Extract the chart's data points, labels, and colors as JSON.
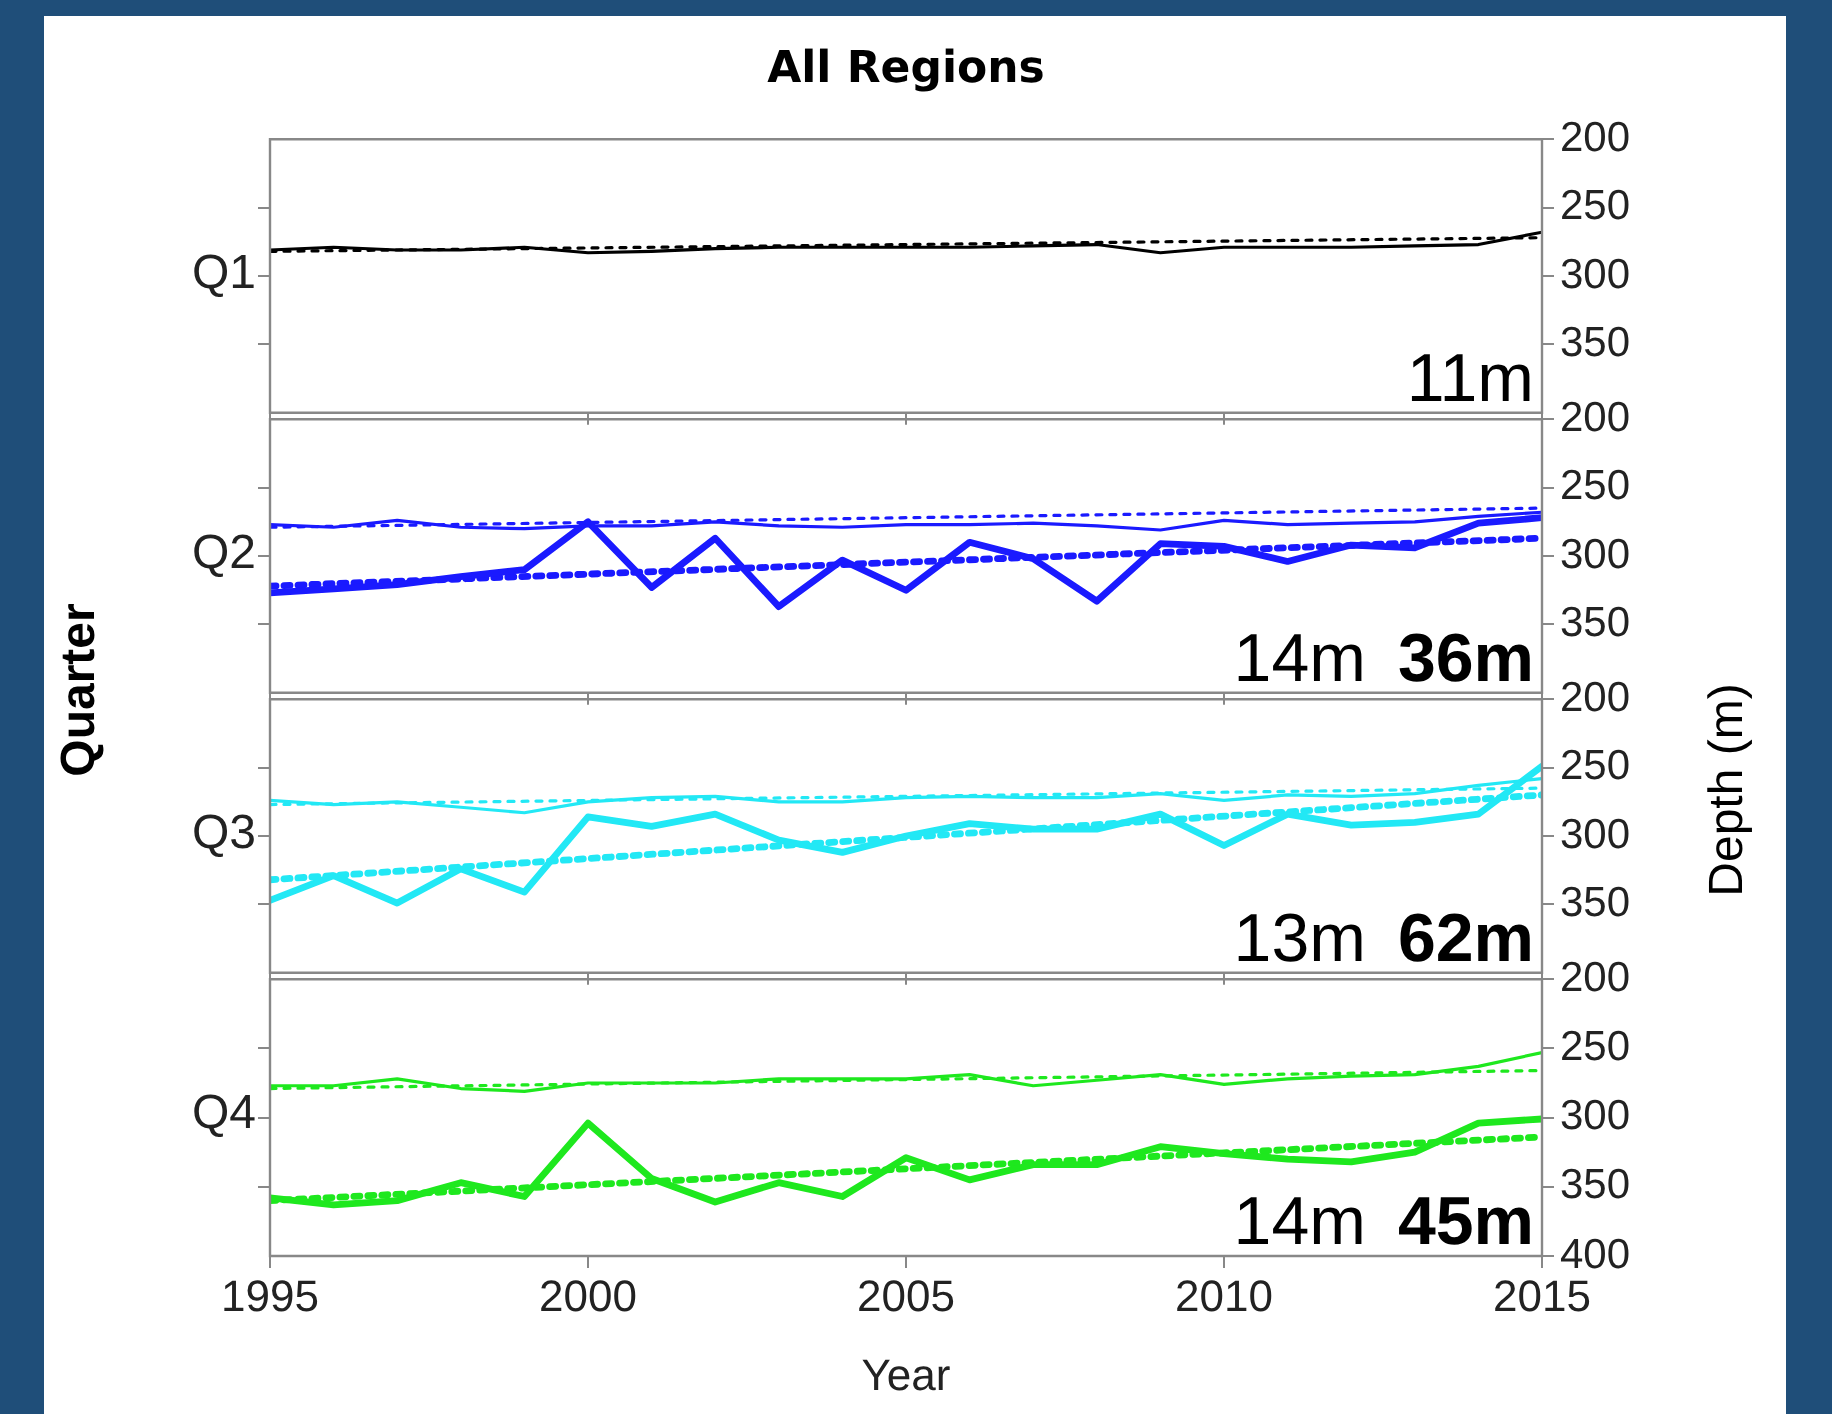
{
  "chart_data": [
    {
      "type": "line",
      "title": "All Regions",
      "x": [
        1995,
        1996,
        1997,
        1998,
        1999,
        2000,
        2001,
        2002,
        2003,
        2004,
        2005,
        2006,
        2007,
        2008,
        2009,
        2010,
        2011,
        2012,
        2013,
        2014,
        2015
      ],
      "xlim": [
        1995,
        2015
      ],
      "xticks": [
        1995,
        2000,
        2005,
        2010,
        2015
      ],
      "ylim": [
        400,
        200
      ],
      "yticks": [
        200,
        250,
        300,
        350
      ],
      "subtitle": "Q1",
      "tick_labels": "y",
      "grid": false,
      "legend": false,
      "marker": "none",
      "annotations": [
        "11m"
      ],
      "series": [
        {
          "color": "#000000",
          "line_style": "solid",
          "values": [
            281,
            279,
            281,
            281,
            279,
            283,
            282,
            280,
            279,
            279,
            279,
            279,
            278,
            277,
            283,
            279,
            279,
            279,
            278,
            277,
            268
          ]
        },
        {
          "color": "#000000",
          "line_style": "dotted",
          "values": [
            282,
            null,
            null,
            null,
            null,
            null,
            null,
            null,
            null,
            null,
            null,
            null,
            null,
            null,
            null,
            null,
            null,
            null,
            null,
            null,
            272
          ]
        }
      ]
    },
    {
      "type": "line",
      "x": [
        1995,
        1996,
        1997,
        1998,
        1999,
        2000,
        2001,
        2002,
        2003,
        2004,
        2005,
        2006,
        2007,
        2008,
        2009,
        2010,
        2011,
        2012,
        2013,
        2014,
        2015
      ],
      "xlim": [
        1995,
        2015
      ],
      "xticks": [
        1995,
        2000,
        2005,
        2010,
        2015
      ],
      "ylim": [
        400,
        200
      ],
      "yticks": [
        200,
        250,
        300,
        350
      ],
      "subtitle": "Q2",
      "y2label": "Quarter",
      "tick_labels": "y",
      "grid": false,
      "legend": false,
      "marker": "none",
      "annotations": [
        "14m",
        "36m"
      ],
      "series": [
        {
          "color": "#1a1aff",
          "line_style": "solid",
          "values": [
            277,
            279,
            274,
            279,
            280,
            278,
            278,
            275,
            278,
            279,
            277,
            277,
            276,
            278,
            281,
            274,
            277,
            276,
            275,
            271,
            268
          ]
        },
        {
          "color": "#1a1aff",
          "line_style": "dotted",
          "values": [
            279,
            null,
            null,
            null,
            null,
            null,
            null,
            null,
            null,
            null,
            null,
            null,
            null,
            null,
            null,
            null,
            null,
            null,
            null,
            null,
            265
          ]
        },
        {
          "color": "#1a1aff",
          "line_style": "solid",
          "values": [
            327,
            324,
            321,
            315,
            310,
            275,
            323,
            287,
            337,
            303,
            325,
            290,
            302,
            333,
            291,
            293,
            304,
            292,
            294,
            276,
            272
          ]
        },
        {
          "color": "#1a1aff",
          "line_style": "dotted",
          "values": [
            322,
            null,
            null,
            null,
            null,
            null,
            null,
            null,
            null,
            null,
            null,
            null,
            null,
            null,
            null,
            null,
            null,
            null,
            null,
            null,
            287
          ]
        }
      ]
    },
    {
      "type": "line",
      "x": [
        1995,
        1996,
        1997,
        1998,
        1999,
        2000,
        2001,
        2002,
        2003,
        2004,
        2005,
        2006,
        2007,
        2008,
        2009,
        2010,
        2011,
        2012,
        2013,
        2014,
        2015
      ],
      "xlim": [
        1995,
        2015
      ],
      "xticks": [
        1995,
        2000,
        2005,
        2010,
        2015
      ],
      "ylim": [
        400,
        200
      ],
      "yticks": [
        200,
        250,
        300,
        350
      ],
      "ylabel": "Depth (m)",
      "subtitle": "Q3",
      "tick_labels": "y",
      "grid": false,
      "legend": false,
      "marker": "none",
      "annotations": [
        "13m",
        "62m"
      ],
      "series": [
        {
          "color": "#22e8f5",
          "line_style": "solid",
          "values": [
            274,
            277,
            275,
            279,
            283,
            275,
            272,
            271,
            275,
            275,
            272,
            271,
            272,
            272,
            269,
            274,
            270,
            271,
            269,
            263,
            258
          ]
        },
        {
          "color": "#22e8f5",
          "line_style": "dotted",
          "values": [
            277,
            null,
            null,
            null,
            null,
            null,
            null,
            null,
            null,
            null,
            null,
            null,
            null,
            null,
            null,
            null,
            null,
            null,
            null,
            null,
            265
          ]
        },
        {
          "color": "#22e8f5",
          "line_style": "solid",
          "values": [
            347,
            329,
            349,
            324,
            341,
            286,
            293,
            284,
            303,
            312,
            300,
            291,
            295,
            295,
            284,
            307,
            284,
            292,
            290,
            284,
            249
          ]
        },
        {
          "color": "#22e8f5",
          "line_style": "dotted",
          "values": [
            332,
            null,
            null,
            null,
            null,
            null,
            null,
            null,
            null,
            null,
            null,
            null,
            null,
            null,
            null,
            null,
            null,
            null,
            null,
            null,
            270
          ]
        }
      ]
    },
    {
      "type": "line",
      "x": [
        1995,
        1996,
        1997,
        1998,
        1999,
        2000,
        2001,
        2002,
        2003,
        2004,
        2005,
        2006,
        2007,
        2008,
        2009,
        2010,
        2011,
        2012,
        2013,
        2014,
        2015
      ],
      "xlim": [
        1995,
        2015
      ],
      "xticks": [
        1995,
        2000,
        2005,
        2010,
        2015
      ],
      "xlabel": "Year",
      "ylim": [
        400,
        200
      ],
      "yticks": [
        200,
        250,
        300,
        350,
        400
      ],
      "subtitle": "Q4",
      "grid": false,
      "legend": false,
      "marker": "none",
      "annotations": [
        "14m",
        "45m"
      ],
      "series": [
        {
          "color": "#1ee81e",
          "line_style": "solid",
          "values": [
            277,
            277,
            272,
            279,
            281,
            275,
            275,
            275,
            272,
            272,
            272,
            269,
            277,
            273,
            269,
            276,
            272,
            270,
            269,
            263,
            253
          ]
        },
        {
          "color": "#1ee81e",
          "line_style": "dotted",
          "values": [
            279,
            null,
            null,
            null,
            null,
            null,
            null,
            null,
            null,
            null,
            null,
            null,
            null,
            null,
            null,
            null,
            null,
            null,
            null,
            null,
            266
          ]
        },
        {
          "color": "#1ee81e",
          "line_style": "solid",
          "values": [
            358,
            363,
            360,
            347,
            357,
            304,
            344,
            361,
            347,
            357,
            329,
            345,
            334,
            334,
            321,
            326,
            330,
            332,
            325,
            304,
            301
          ]
        },
        {
          "color": "#1ee81e",
          "line_style": "dotted",
          "values": [
            360,
            null,
            null,
            null,
            null,
            null,
            null,
            null,
            null,
            null,
            null,
            null,
            null,
            null,
            null,
            null,
            null,
            null,
            null,
            null,
            314
          ]
        }
      ]
    }
  ]
}
